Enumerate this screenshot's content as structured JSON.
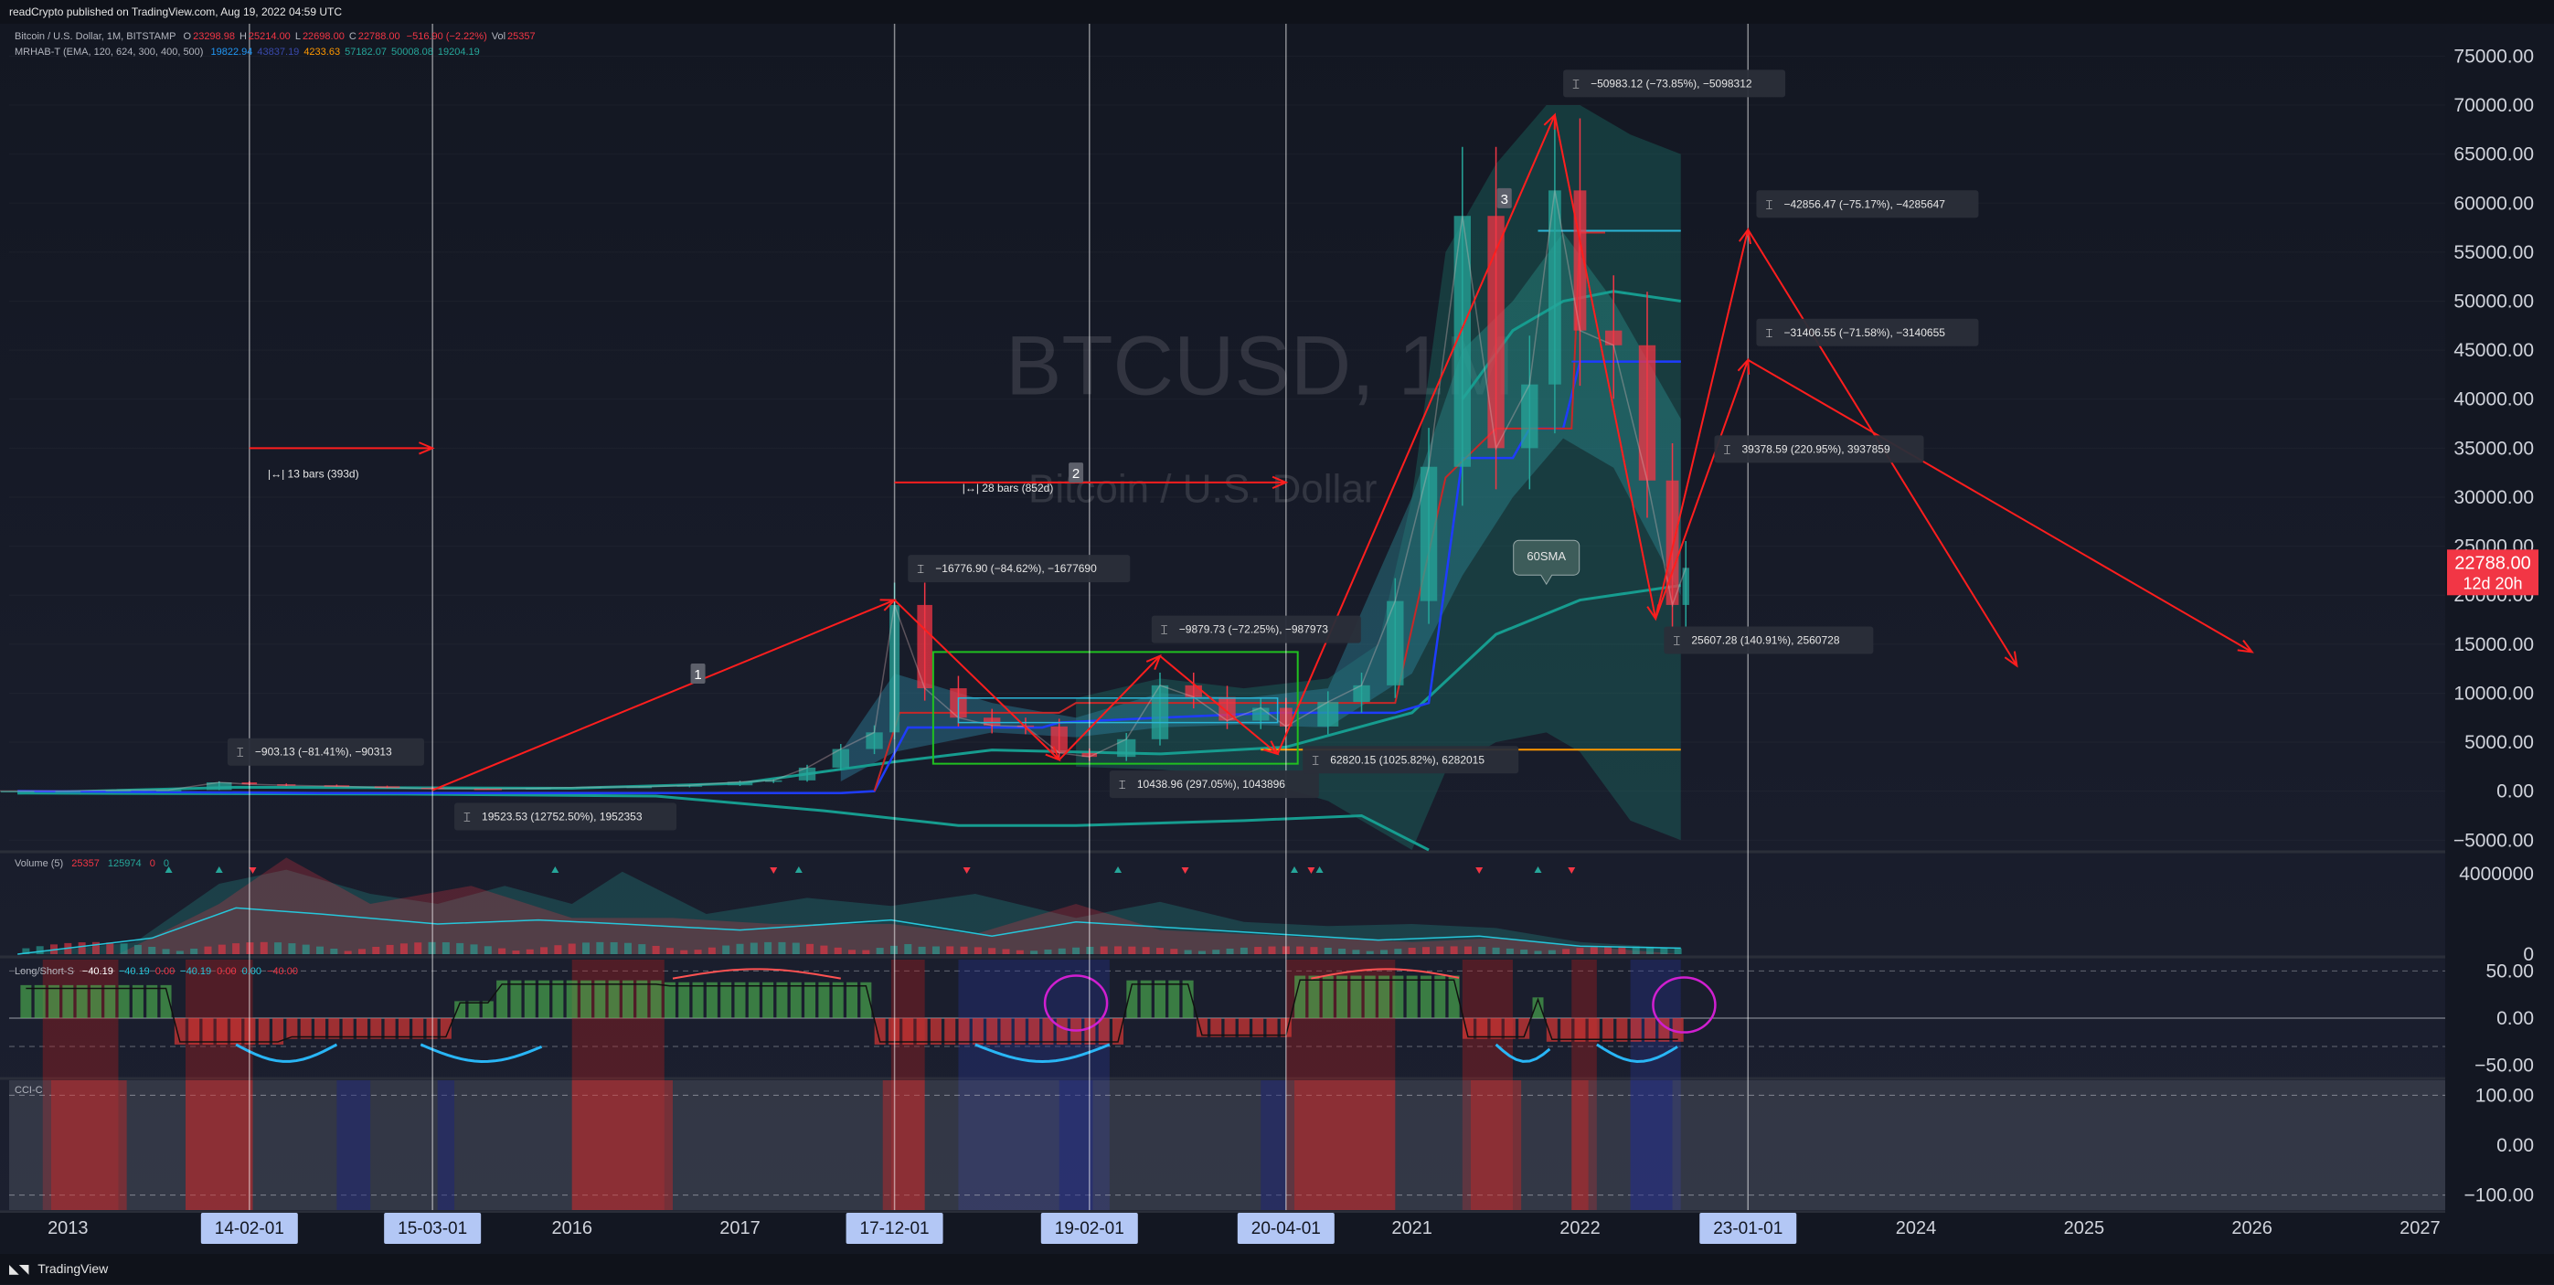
{
  "header": {
    "published": "readCrypto published on TradingView.com, Aug 19, 2022 04:59 UTC"
  },
  "legend": {
    "symbol": "Bitcoin / U.S. Dollar, 1M, BITSTAMP",
    "ohlc": [
      {
        "k": "O",
        "v": "23298.98",
        "color": "#f23645"
      },
      {
        "k": "H",
        "v": "25214.00",
        "color": "#f23645"
      },
      {
        "k": "L",
        "v": "22698.00",
        "color": "#f23645"
      },
      {
        "k": "C",
        "v": "22788.00",
        "color": "#f23645"
      },
      {
        "k": "",
        "v": "−516.90 (−2.22%)",
        "color": "#f23645"
      },
      {
        "k": "Vol",
        "v": "25357",
        "color": "#f23645"
      }
    ],
    "indicator": "MRHAB-T (EMA, 120, 624, 300, 400, 500)",
    "indicator_values": [
      {
        "v": "19822.94",
        "color": "#2196f3"
      },
      {
        "v": "43837.19",
        "color": "#3949ab"
      },
      {
        "v": "4233.63",
        "color": "#ff9800"
      },
      {
        "v": "57182.07",
        "color": "#26a69a"
      },
      {
        "v": "50008.08",
        "color": "#26a69a"
      },
      {
        "v": "19204.19",
        "color": "#26a69a"
      }
    ]
  },
  "panes": {
    "volume": {
      "title": "Volume (5)",
      "v1": "25357",
      "v2": "125974",
      "v3": "0",
      "v4": "0"
    },
    "longshort": {
      "title": "Long/Short-S",
      "values": [
        "−40.19",
        "−40.19",
        "0.00",
        "−40.19",
        "0.00",
        "0.00",
        "−40.00"
      ]
    },
    "cci": {
      "title": "CCI-C"
    }
  },
  "watermark": {
    "symbol": "BTCUSD, 1M",
    "name": "Bitcoin / U.S. Dollar"
  },
  "last_price": {
    "value": "22788.00",
    "countdown": "12d 20h"
  },
  "colors": {
    "background": "#131722",
    "bull": "#26a69a",
    "bear": "#f23645",
    "trend_red": "#ff1e1e",
    "blue_line": "#1e3cff",
    "teal_line": "#169c8f",
    "orange_line": "#ff9800",
    "cyan_line": "#2bb5d6",
    "magenta": "#d01fd0",
    "box_green": "#20c020"
  },
  "footer": {
    "logo": "TradingView",
    "logo_icon": "tradingview-logo-icon"
  },
  "chart_data": [
    {
      "type": "line",
      "title": "Bitcoin / U.S. Dollar, 1M, BITSTAMP",
      "ylabel": "",
      "ylim": [
        -6000,
        77000
      ],
      "y_ticks": [
        "75000.00",
        "70000.00",
        "65000.00",
        "60000.00",
        "55000.00",
        "50000.00",
        "45000.00",
        "40000.00",
        "35000.00",
        "30000.00",
        "25000.00",
        "20000.00",
        "15000.00",
        "10000.00",
        "5000.00",
        "0.00",
        "−5000.00"
      ],
      "x_ticks": [
        {
          "label": "2013",
          "t": 2013.0,
          "hl": false
        },
        {
          "label": "14-02-01",
          "t": 2014.08,
          "hl": true
        },
        {
          "label": "15-03-01",
          "t": 2015.17,
          "hl": true
        },
        {
          "label": "2016",
          "t": 2016.0,
          "hl": false
        },
        {
          "label": "2017",
          "t": 2017.0,
          "hl": false
        },
        {
          "label": "17-12-01",
          "t": 2017.92,
          "hl": true
        },
        {
          "label": "19-02-01",
          "t": 2019.08,
          "hl": true
        },
        {
          "label": "20-04-01",
          "t": 2020.25,
          "hl": true
        },
        {
          "label": "2021",
          "t": 2021.0,
          "hl": false
        },
        {
          "label": "2022",
          "t": 2022.0,
          "hl": false
        },
        {
          "label": "23-01-01",
          "t": 2023.0,
          "hl": true
        },
        {
          "label": "2024",
          "t": 2024.0,
          "hl": false
        },
        {
          "label": "2025",
          "t": 2025.0,
          "hl": false
        },
        {
          "label": "2026",
          "t": 2026.0,
          "hl": false
        },
        {
          "label": "2027",
          "t": 2027.0,
          "hl": false
        }
      ],
      "vertical_markers": [
        2014.08,
        2015.17,
        2017.92,
        2019.08,
        2020.25,
        2023.0
      ],
      "series": [
        {
          "name": "",
          "color": "#26a69a",
          "x": [
            2012.3,
            2012.7,
            2013.0,
            2013.3,
            2013.6,
            2013.9,
            2014.08,
            2014.3,
            2014.6,
            2014.9,
            2015.17,
            2015.5,
            2015.8,
            2016.1,
            2016.4,
            2016.7,
            2017.0,
            2017.2,
            2017.4,
            2017.6,
            2017.8,
            2017.92,
            2018.1,
            2018.3,
            2018.5,
            2018.7,
            2018.9,
            2019.08,
            2019.3,
            2019.5,
            2019.7,
            2019.9,
            2020.1,
            2020.25,
            2020.5,
            2020.7,
            2020.9,
            2021.1,
            2021.3,
            2021.5,
            2021.7,
            2021.85,
            2022.0,
            2022.2,
            2022.4,
            2022.55,
            2022.63
          ],
          "values": [
            10,
            12,
            20,
            100,
            120,
            900,
            700,
            600,
            500,
            350,
            250,
            240,
            300,
            400,
            450,
            600,
            950,
            1100,
            2400,
            4300,
            6000,
            19000,
            10500,
            7500,
            6700,
            6600,
            3900,
            3500,
            5300,
            10800,
            9600,
            7200,
            8500,
            6600,
            9100,
            10800,
            19400,
            33100,
            58700,
            35000,
            41500,
            61300,
            47000,
            45500,
            31700,
            19000,
            22788
          ]
        }
      ],
      "levels": [
        {
          "name": "",
          "y": 57182.07,
          "t_from": 2021.75,
          "t_to": 2022.6,
          "color": "#2bb5d6"
        },
        {
          "name": "",
          "y": 43837.19,
          "t_from": 2021.95,
          "t_to": 2022.6,
          "color": "#1e3cff"
        },
        {
          "name": "",
          "y": 4233.63,
          "t_from": 2020.1,
          "t_to": 2022.6,
          "color": "#ff9800"
        }
      ],
      "trend_lines": [
        {
          "from": [
            2015.17,
            100
          ],
          "to": [
            2017.92,
            19500
          ]
        },
        {
          "from": [
            2017.92,
            19500
          ],
          "to": [
            2018.9,
            3200
          ]
        },
        {
          "from": [
            2018.9,
            3200
          ],
          "to": [
            2019.5,
            13800
          ]
        },
        {
          "from": [
            2019.5,
            13800
          ],
          "to": [
            2020.2,
            3800
          ]
        },
        {
          "from": [
            2020.2,
            3800
          ],
          "to": [
            2021.85,
            69000
          ]
        },
        {
          "from": [
            2021.85,
            69000
          ],
          "to": [
            2022.45,
            17600
          ]
        },
        {
          "from": [
            2022.45,
            17600
          ],
          "to": [
            2023.0,
            57300
          ]
        },
        {
          "from": [
            2023.0,
            57300
          ],
          "to": [
            2024.6,
            12800
          ]
        },
        {
          "from": [
            2022.45,
            17600
          ],
          "to": [
            2023.0,
            44000
          ]
        },
        {
          "from": [
            2023.0,
            44000
          ],
          "to": [
            2026.0,
            14200
          ]
        }
      ],
      "bars_ranges": [
        {
          "label": "13 bars (393d)",
          "from": 2014.08,
          "to": 2015.17,
          "y": 35000
        },
        {
          "label": "28 bars (852d)",
          "from": 2017.92,
          "to": 2020.25,
          "y": 31500
        }
      ],
      "wave_labels": [
        {
          "label": "1",
          "t": 2016.75,
          "y": 12000
        },
        {
          "label": "2",
          "t": 2019.0,
          "y": 32500
        },
        {
          "label": "3",
          "t": 2021.55,
          "y": 60500
        }
      ],
      "measures": [
        {
          "label": "−903.13 (−81.41%), −90313",
          "t": 2013.95,
          "y": 4100
        },
        {
          "label": "19523.53 (12752.50%), 1952353",
          "t": 2015.3,
          "y": -2500
        },
        {
          "label": "−16776.90 (−84.62%), −1677690",
          "t": 2018.0,
          "y": 22800
        },
        {
          "label": "−9879.73 (−72.25%), −987973",
          "t": 2019.45,
          "y": 16600
        },
        {
          "label": "10438.96 (297.05%), 1043896",
          "t": 2019.2,
          "y": 800
        },
        {
          "label": "62820.15 (1025.82%), 6282015",
          "t": 2020.35,
          "y": 3300
        },
        {
          "label": "−50983.12 (−73.85%), −5098312",
          "t": 2021.9,
          "y": 72300
        },
        {
          "label": "−42856.47 (−75.17%), −4285647",
          "t": 2023.05,
          "y": 60000
        },
        {
          "label": "−31406.55 (−71.58%), −3140655",
          "t": 2023.05,
          "y": 46900
        },
        {
          "label": "39378.59 (220.95%), 3937859",
          "t": 2022.8,
          "y": 35000
        },
        {
          "label": "25607.28 (140.91%), 2560728",
          "t": 2022.5,
          "y": 15500
        }
      ],
      "annotations": [
        {
          "label": "60SMA",
          "t": 2021.8,
          "y": 20000
        }
      ]
    },
    {
      "type": "bar",
      "title": "Volume (5)",
      "y_ticks": [
        "4000000",
        "0"
      ],
      "ylim": [
        0,
        5000000
      ]
    },
    {
      "type": "bar",
      "title": "Long/Short-S",
      "y_ticks": [
        "50.00",
        "0.00",
        "−50.00"
      ],
      "ylim": [
        -62,
        62
      ]
    },
    {
      "type": "line",
      "title": "CCI-C",
      "y_ticks": [
        "100.00",
        "0.00",
        "−100.00"
      ],
      "ylim": [
        -130,
        130
      ]
    }
  ]
}
